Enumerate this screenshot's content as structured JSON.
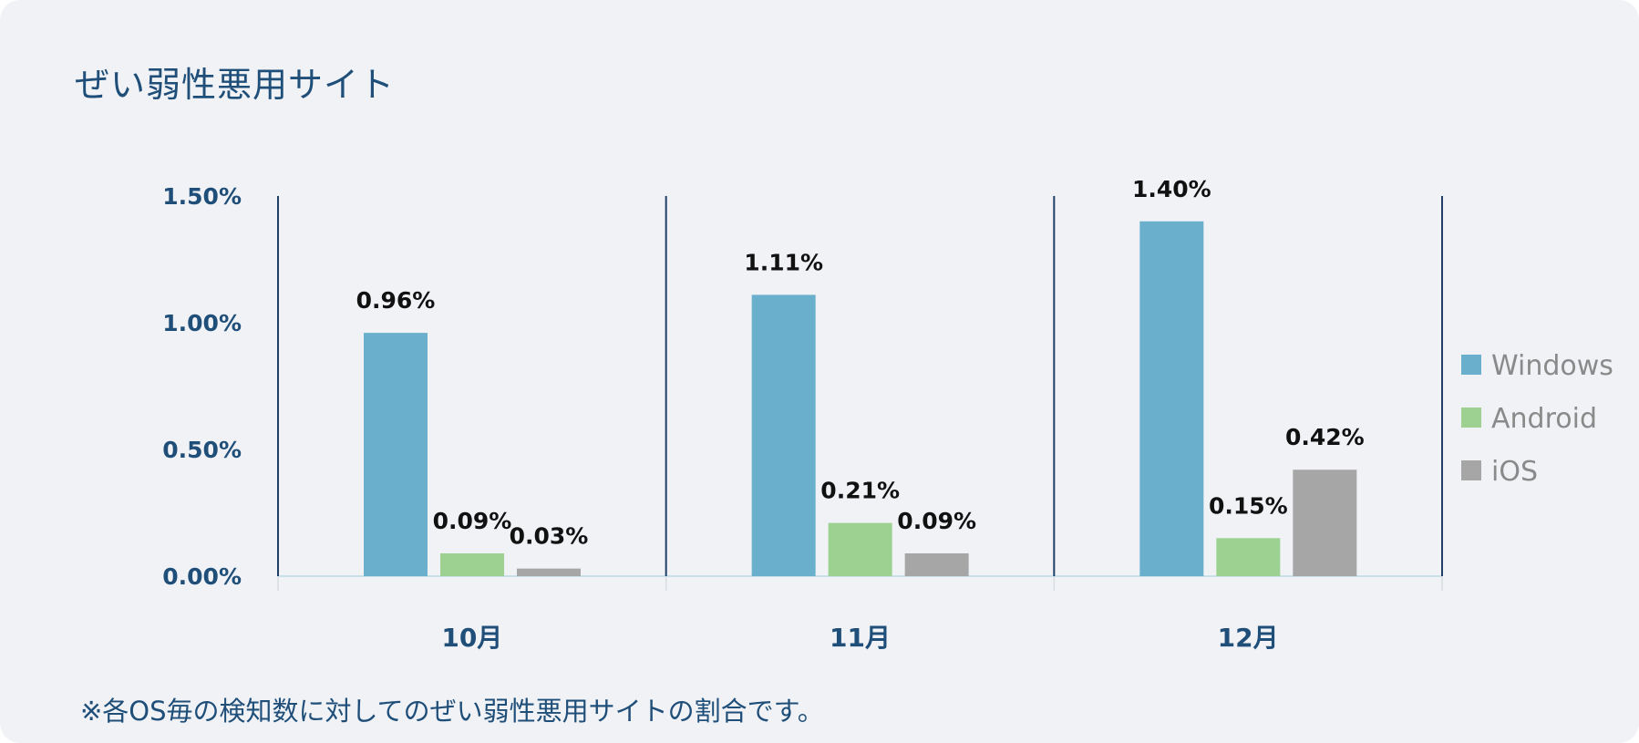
{
  "title": "ぜい弱性悪用サイト",
  "footnote": "※各OS毎の検知数に対してのぜい弱性悪用サイトの割合です。",
  "colors": {
    "background": "#f0f2f6",
    "text": "#1f4e79",
    "Windows": "#6ab0cc",
    "Android": "#9dd192",
    "iOS": "#a6a6a6"
  },
  "chart_data": {
    "type": "bar",
    "categories": [
      "10月",
      "11月",
      "12月"
    ],
    "series": [
      {
        "name": "Windows",
        "values": [
          0.96,
          1.11,
          1.4
        ],
        "labels": [
          "0.96%",
          "1.11%",
          "1.40%"
        ]
      },
      {
        "name": "Android",
        "values": [
          0.09,
          0.21,
          0.15
        ],
        "labels": [
          "0.09%",
          "0.21%",
          "0.15%"
        ]
      },
      {
        "name": "iOS",
        "values": [
          0.03,
          0.09,
          0.42
        ],
        "labels": [
          "0.03%",
          "0.09%",
          "0.42%"
        ]
      }
    ],
    "yticks": [
      {
        "value": 0.0,
        "label": "0.00%"
      },
      {
        "value": 0.5,
        "label": "0.50%"
      },
      {
        "value": 1.0,
        "label": "1.00%"
      },
      {
        "value": 1.5,
        "label": "1.50%"
      }
    ],
    "ylim": [
      0,
      1.5
    ],
    "legend_position": "right",
    "grid": false
  }
}
